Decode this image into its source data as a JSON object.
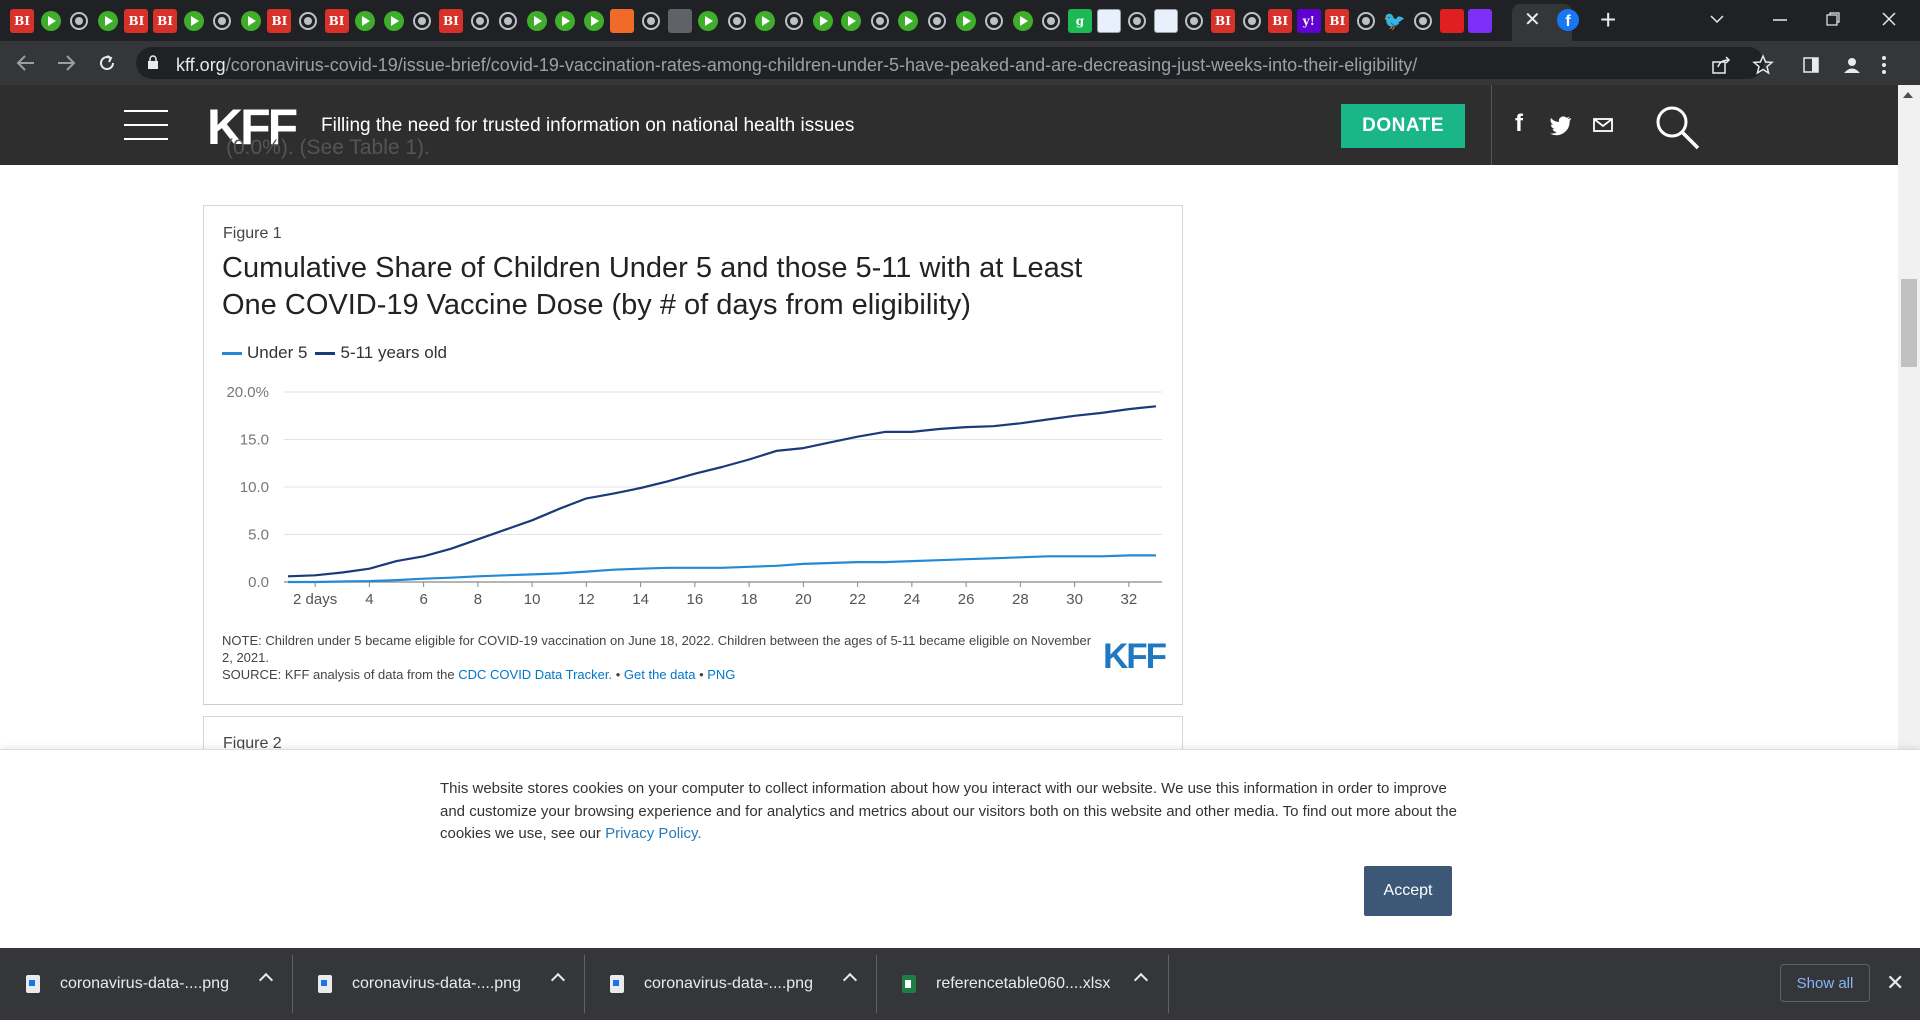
{
  "browser": {
    "url_host": "kff.org",
    "url_path": "/coronavirus-covid-19/issue-brief/covid-19-vaccination-rates-among-children-under-5-have-peaked-and-are-decreasing-just-weeks-into-their-eligibility/",
    "tab_favicons": [
      "BI",
      "play",
      "globe",
      "play",
      "BI",
      "BI",
      "play",
      "globe",
      "play",
      "BI",
      "globe",
      "BI",
      "play",
      "play",
      "globe",
      "BI",
      "globe",
      "globe",
      "play",
      "play",
      "play",
      "orange",
      "globe",
      "grey",
      "play",
      "globe",
      "play",
      "globe",
      "play",
      "play",
      "globe",
      "play",
      "globe",
      "play",
      "globe",
      "play",
      "globe",
      "g",
      "tiles",
      "globe",
      "tiles",
      "globe",
      "BI",
      "globe",
      "BI",
      "yahoo",
      "BI",
      "globe",
      "twitter",
      "globe",
      "red",
      "purple"
    ],
    "favicon_text": {
      "BI": "BI",
      "g": "g",
      "yahoo": "y!",
      "twitter": "🐦"
    },
    "active_tab_favicon": "f",
    "tab_close_glyph": "✕",
    "newtab_glyph": "+"
  },
  "site_header": {
    "logo": "KFF",
    "tagline": "Filling the need for trusted information on national health issues",
    "donate_label": "DONATE",
    "social": {
      "facebook": "f",
      "twitter": "🐦",
      "email": "✉"
    }
  },
  "article": {
    "cut_text": "(0.0%). (See Table 1)."
  },
  "figure1": {
    "label": "Figure 1",
    "title": "Cumulative Share of Children Under 5 and those 5-11 with at Least One COVID-19 Vaccine Dose (by # of days from eligibility)",
    "note": "NOTE: Children under 5 became eligible for COVID-19 vaccination on June 18, 2022. Children between the ages of 5-11 became eligible on November 2, 2021.",
    "source_prefix": "SOURCE: KFF analysis of data from the ",
    "source_link1": "CDC COVID Data Tracker.",
    "source_sep1": " • ",
    "source_link2": "Get the data",
    "source_sep2": " • ",
    "source_link3": "PNG",
    "watermark": "KFF"
  },
  "chart_data": {
    "type": "line",
    "title": "Cumulative Share of Children Under 5 and those 5-11 with at Least One COVID-19 Vaccine Dose (by # of days from eligibility)",
    "xlabel": "",
    "ylabel": "",
    "ylim": [
      0,
      20
    ],
    "xlim": [
      1,
      33
    ],
    "y_ticks": [
      "0.0",
      "5.0",
      "10.0",
      "15.0",
      "20.0%"
    ],
    "y_tick_values": [
      0,
      5,
      10,
      15,
      20
    ],
    "x_ticks": [
      "2 days",
      "4",
      "6",
      "8",
      "10",
      "12",
      "14",
      "16",
      "18",
      "20",
      "22",
      "24",
      "26",
      "28",
      "30",
      "32"
    ],
    "x_tick_values": [
      2,
      4,
      6,
      8,
      10,
      12,
      14,
      16,
      18,
      20,
      22,
      24,
      26,
      28,
      30,
      32
    ],
    "legend_placement": "top-left",
    "grid": true,
    "x": [
      1,
      2,
      3,
      4,
      5,
      6,
      7,
      8,
      9,
      10,
      11,
      12,
      13,
      14,
      15,
      16,
      17,
      18,
      19,
      20,
      21,
      22,
      23,
      24,
      25,
      26,
      27,
      28,
      29,
      30,
      31,
      32,
      33
    ],
    "series": [
      {
        "name": "Under 5",
        "color": "#2589d4",
        "values": [
          0.0,
          0.0,
          0.05,
          0.1,
          0.2,
          0.35,
          0.45,
          0.6,
          0.7,
          0.8,
          0.9,
          1.1,
          1.3,
          1.4,
          1.5,
          1.5,
          1.5,
          1.6,
          1.7,
          1.9,
          2.0,
          2.1,
          2.1,
          2.2,
          2.3,
          2.4,
          2.5,
          2.6,
          2.7,
          2.7,
          2.7,
          2.8,
          2.8
        ]
      },
      {
        "name": "5-11 years old",
        "color": "#1b3a7a",
        "values": [
          0.6,
          0.7,
          1.0,
          1.4,
          2.2,
          2.7,
          3.5,
          4.5,
          5.5,
          6.5,
          7.7,
          8.8,
          9.3,
          9.9,
          10.6,
          11.4,
          12.1,
          12.9,
          13.8,
          14.1,
          14.7,
          15.3,
          15.8,
          15.8,
          16.1,
          16.3,
          16.4,
          16.7,
          17.1,
          17.5,
          17.8,
          18.2,
          18.5
        ]
      }
    ]
  },
  "figure2": {
    "label": "Figure 2"
  },
  "cookie_banner": {
    "text": "This website stores cookies on your computer to collect information about how you interact with our website. We use this information in order to improve and customize your browsing experience and for analytics and metrics about our visitors both on this website and other media. To find out more about the cookies we use, see our ",
    "link": "Privacy Policy.",
    "accept_label": "Accept"
  },
  "downloads": {
    "items": [
      {
        "name": "coronavirus-data-....png",
        "type": "png"
      },
      {
        "name": "coronavirus-data-....png",
        "type": "png"
      },
      {
        "name": "coronavirus-data-....png",
        "type": "png"
      },
      {
        "name": "referencetable060....xlsx",
        "type": "xlsx"
      }
    ],
    "show_all_label": "Show all",
    "close_glyph": "✕"
  }
}
